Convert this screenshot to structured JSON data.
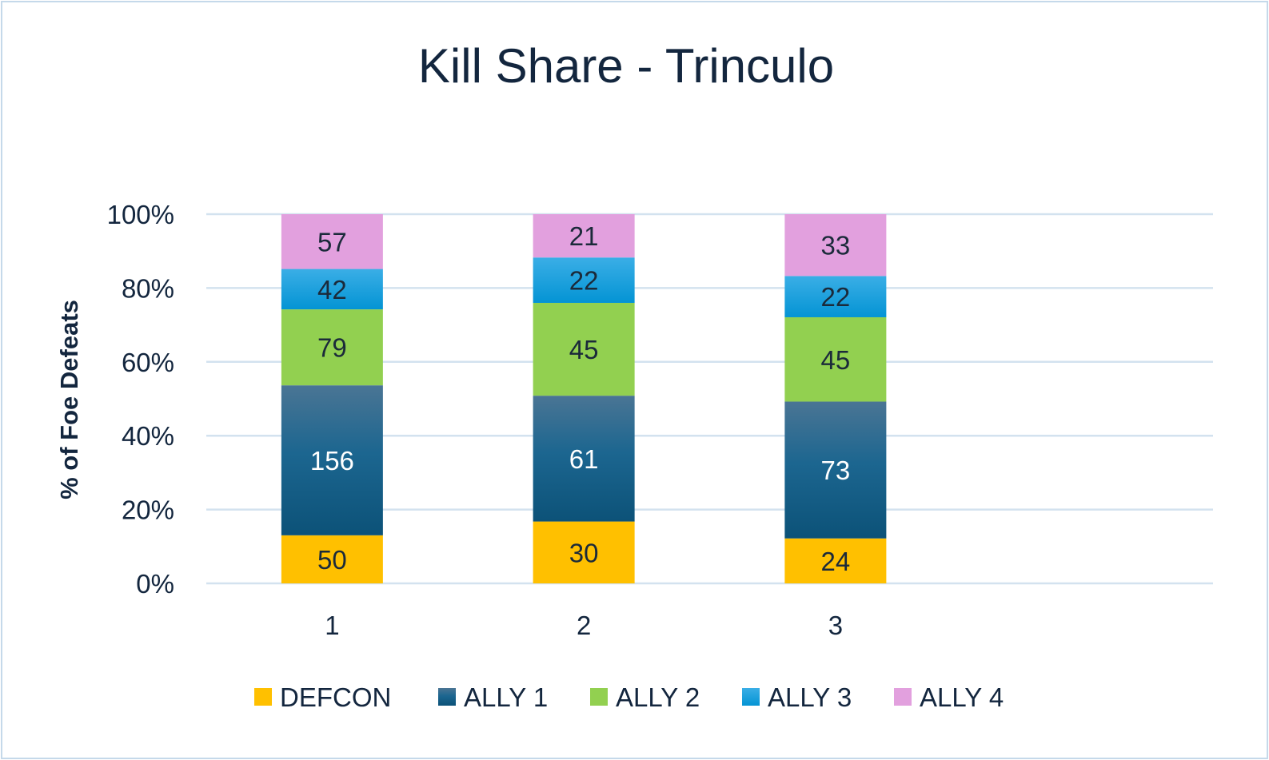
{
  "chart_data": {
    "type": "bar",
    "stacked": "percent",
    "title": "Kill Share - Trinculo",
    "xlabel": "",
    "ylabel": "% of Foe Defeats",
    "ylim": [
      0,
      100
    ],
    "yticks": [
      "0%",
      "20%",
      "40%",
      "60%",
      "80%",
      "100%"
    ],
    "grid": true,
    "legend": "bottom",
    "categories": [
      "1",
      "2",
      "3",
      ""
    ],
    "series": [
      {
        "name": "DEFCON",
        "color": "#FFC000",
        "values": [
          50,
          30,
          24,
          null
        ]
      },
      {
        "name": "ALLY 1",
        "color": "#125C84",
        "values": [
          156,
          61,
          73,
          null
        ]
      },
      {
        "name": "ALLY 2",
        "color": "#92D050",
        "values": [
          79,
          45,
          45,
          null
        ]
      },
      {
        "name": "ALLY 3",
        "color": "#0A9DDB",
        "values": [
          42,
          22,
          22,
          null
        ]
      },
      {
        "name": "ALLY 4",
        "color": "#E2A0DE",
        "values": [
          57,
          21,
          33,
          null
        ]
      }
    ]
  }
}
